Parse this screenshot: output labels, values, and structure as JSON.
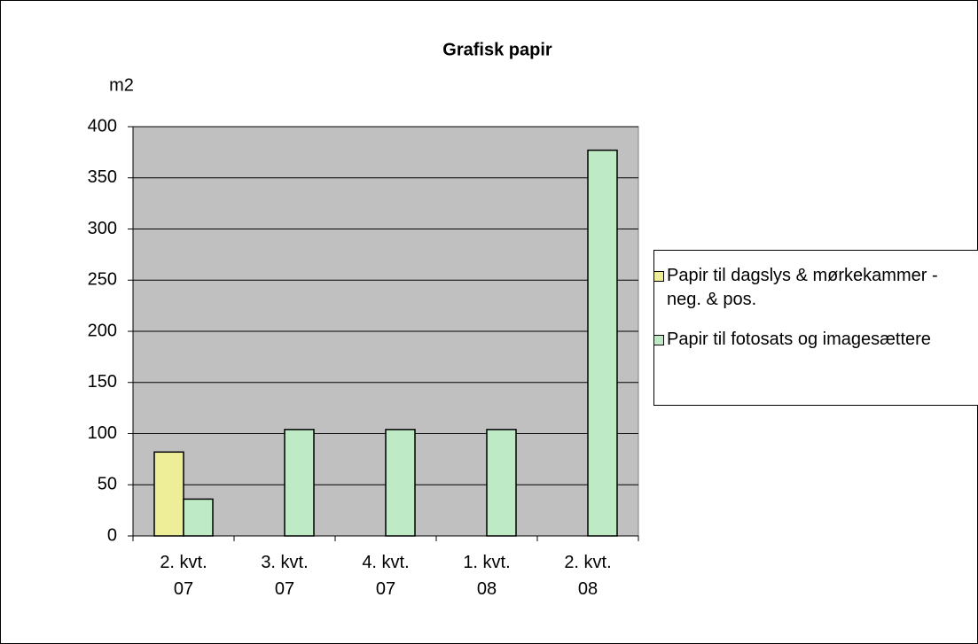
{
  "chart_data": {
    "type": "bar",
    "title": "Grafisk papir",
    "y_label": "m2",
    "categories": [
      "2. kvt.\n07",
      "3. kvt.\n07",
      "4. kvt.\n07",
      "1. kvt.\n08",
      "2. kvt.\n08"
    ],
    "series": [
      {
        "name": "Papir til dagslys & mørkekammer - neg. & pos.",
        "color": "#eeee99",
        "values": [
          82,
          null,
          null,
          null,
          null
        ]
      },
      {
        "name": "Papir til fotosats og imagesættere",
        "color": "#bfeac6",
        "values": [
          36,
          104,
          104,
          104,
          377
        ]
      }
    ],
    "ylim": [
      0,
      400
    ],
    "yticks": [
      0,
      50,
      100,
      150,
      200,
      250,
      300,
      350,
      400
    ],
    "grid": true,
    "legend": "right"
  }
}
